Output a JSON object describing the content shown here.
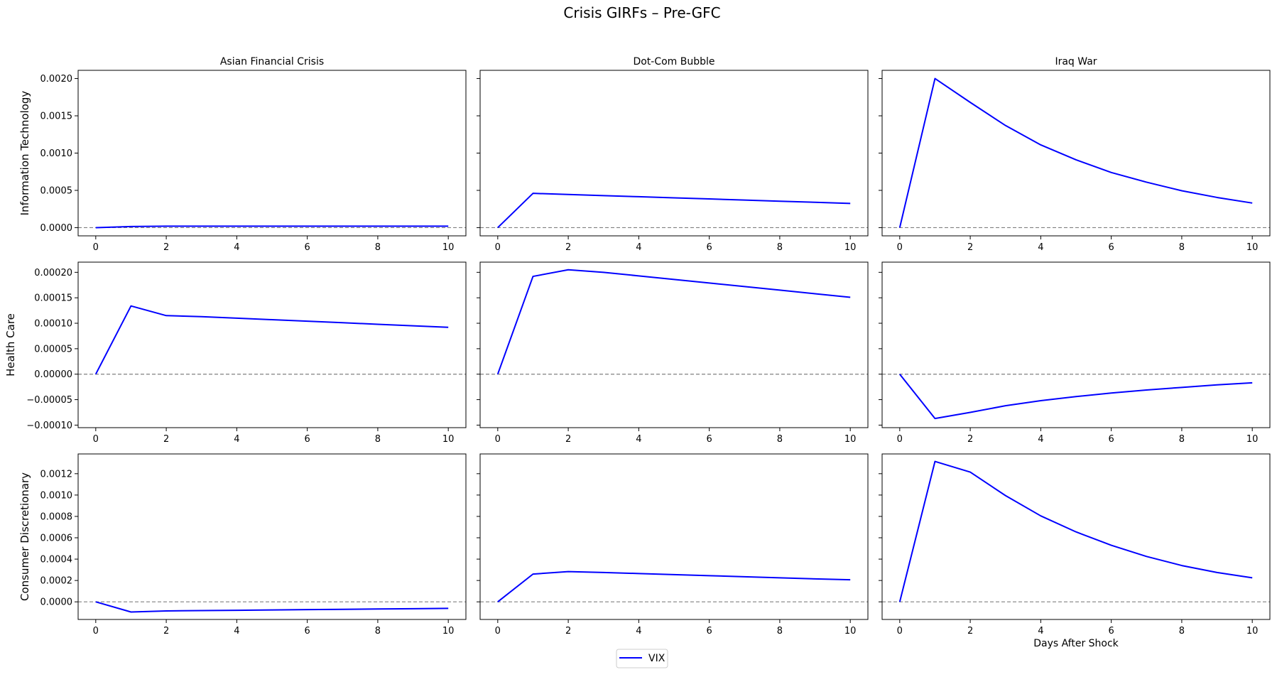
{
  "figure": {
    "title": "Crisis GIRFs – Pre-GFC",
    "legend": {
      "label": "VIX",
      "placement": "bottom-center"
    }
  },
  "colors": {
    "line": "#0000ff",
    "zero_line": "#808080",
    "axes": "#000000"
  },
  "chart_data": [
    {
      "type": "line",
      "row": "Information Technology",
      "column": "Asian Financial Crisis",
      "title": "Asian Financial Crisis",
      "ylabel": "Information Technology",
      "xlabel": "",
      "x": [
        0,
        1,
        2,
        3,
        4,
        5,
        6,
        7,
        8,
        9,
        10
      ],
      "series": [
        {
          "name": "VIX",
          "values": [
            0.0,
            1.5e-05,
            2e-05,
            2e-05,
            2e-05,
            2e-05,
            2e-05,
            2e-05,
            2e-05,
            2e-05,
            2e-05
          ]
        }
      ],
      "xlim": [
        -0.5,
        10.5
      ],
      "xticks": [
        0,
        2,
        4,
        6,
        8,
        10
      ],
      "ylim": [
        -0.00011,
        0.00211
      ],
      "yticks": [
        0.0,
        0.0005,
        0.001,
        0.0015,
        0.002
      ],
      "ytick_labels": [
        "0.0000",
        "0.0005",
        "0.0010",
        "0.0015",
        "0.0020"
      ],
      "show_yticklabels": true,
      "zero_line": true
    },
    {
      "type": "line",
      "row": "Information Technology",
      "column": "Dot-Com Bubble",
      "title": "Dot-Com Bubble",
      "ylabel": "",
      "xlabel": "",
      "x": [
        0,
        1,
        2,
        3,
        4,
        5,
        6,
        7,
        8,
        9,
        10
      ],
      "series": [
        {
          "name": "VIX",
          "values": [
            0.0,
            0.00046,
            0.000445,
            0.00043,
            0.000415,
            0.0004,
            0.000385,
            0.00037,
            0.000355,
            0.00034,
            0.000325
          ]
        }
      ],
      "xlim": [
        -0.5,
        10.5
      ],
      "xticks": [
        0,
        2,
        4,
        6,
        8,
        10
      ],
      "ylim": [
        -0.00011,
        0.00211
      ],
      "yticks": [
        0.0,
        0.0005,
        0.001,
        0.0015,
        0.002
      ],
      "ytick_labels": [],
      "show_yticklabels": false,
      "zero_line": true
    },
    {
      "type": "line",
      "row": "Information Technology",
      "column": "Iraq War",
      "title": "Iraq War",
      "ylabel": "",
      "xlabel": "",
      "x": [
        0,
        1,
        2,
        3,
        4,
        5,
        6,
        7,
        8,
        9,
        10
      ],
      "series": [
        {
          "name": "VIX",
          "values": [
            0.0,
            0.002,
            0.00168,
            0.00137,
            0.00111,
            0.00091,
            0.00074,
            0.00061,
            0.000495,
            0.000405,
            0.00033
          ]
        }
      ],
      "xlim": [
        -0.5,
        10.5
      ],
      "xticks": [
        0,
        2,
        4,
        6,
        8,
        10
      ],
      "ylim": [
        -0.00011,
        0.00211
      ],
      "yticks": [
        0.0,
        0.0005,
        0.001,
        0.0015,
        0.002
      ],
      "ytick_labels": [],
      "show_yticklabels": false,
      "zero_line": true
    },
    {
      "type": "line",
      "row": "Health Care",
      "column": "Asian Financial Crisis",
      "title": "",
      "ylabel": "Health Care",
      "xlabel": "",
      "x": [
        0,
        1,
        2,
        3,
        4,
        5,
        6,
        7,
        8,
        9,
        10
      ],
      "series": [
        {
          "name": "VIX",
          "values": [
            0.0,
            0.000134,
            0.000115,
            0.000113,
            0.00011,
            0.000107,
            0.000104,
            0.000101,
            9.8e-05,
            9.5e-05,
            9.2e-05
          ]
        }
      ],
      "xlim": [
        -0.5,
        10.5
      ],
      "xticks": [
        0,
        2,
        4,
        6,
        8,
        10
      ],
      "ylim": [
        -0.000105,
        0.00022
      ],
      "yticks": [
        -0.0001,
        -5e-05,
        0.0,
        5e-05,
        0.0001,
        0.00015,
        0.0002
      ],
      "ytick_labels": [
        "−0.00010",
        "−0.00005",
        "0.00000",
        "0.00005",
        "0.00010",
        "0.00015",
        "0.00020"
      ],
      "show_yticklabels": true,
      "zero_line": true
    },
    {
      "type": "line",
      "row": "Health Care",
      "column": "Dot-Com Bubble",
      "title": "",
      "ylabel": "",
      "xlabel": "",
      "x": [
        0,
        1,
        2,
        3,
        4,
        5,
        6,
        7,
        8,
        9,
        10
      ],
      "series": [
        {
          "name": "VIX",
          "values": [
            0.0,
            0.000192,
            0.000205,
            0.0002,
            0.000193,
            0.000186,
            0.000179,
            0.000172,
            0.000165,
            0.000158,
            0.000151
          ]
        }
      ],
      "xlim": [
        -0.5,
        10.5
      ],
      "xticks": [
        0,
        2,
        4,
        6,
        8,
        10
      ],
      "ylim": [
        -0.000105,
        0.00022
      ],
      "yticks": [
        -0.0001,
        -5e-05,
        0.0,
        5e-05,
        0.0001,
        0.00015,
        0.0002
      ],
      "ytick_labels": [],
      "show_yticklabels": false,
      "zero_line": true
    },
    {
      "type": "line",
      "row": "Health Care",
      "column": "Iraq War",
      "title": "",
      "ylabel": "",
      "xlabel": "",
      "x": [
        0,
        1,
        2,
        3,
        4,
        5,
        6,
        7,
        8,
        9,
        10
      ],
      "series": [
        {
          "name": "VIX",
          "values": [
            0.0,
            -8.7e-05,
            -7.5e-05,
            -6.2e-05,
            -5.2e-05,
            -4.4e-05,
            -3.7e-05,
            -3.1e-05,
            -2.6e-05,
            -2.1e-05,
            -1.7e-05
          ]
        }
      ],
      "xlim": [
        -0.5,
        10.5
      ],
      "xticks": [
        0,
        2,
        4,
        6,
        8,
        10
      ],
      "ylim": [
        -0.000105,
        0.00022
      ],
      "yticks": [
        -0.0001,
        -5e-05,
        0.0,
        5e-05,
        0.0001,
        0.00015,
        0.0002
      ],
      "ytick_labels": [],
      "show_yticklabels": false,
      "zero_line": true
    },
    {
      "type": "line",
      "row": "Consumer Discretionary",
      "column": "Asian Financial Crisis",
      "title": "",
      "ylabel": "Consumer Discretionary",
      "xlabel": "",
      "x": [
        0,
        1,
        2,
        3,
        4,
        5,
        6,
        7,
        8,
        9,
        10
      ],
      "series": [
        {
          "name": "VIX",
          "values": [
            0.0,
            -9.5e-05,
            -8.5e-05,
            -8.2e-05,
            -7.9e-05,
            -7.6e-05,
            -7.3e-05,
            -7e-05,
            -6.7e-05,
            -6.4e-05,
            -6.1e-05
          ]
        }
      ],
      "xlim": [
        -0.5,
        10.5
      ],
      "xticks": [
        0,
        2,
        4,
        6,
        8,
        10
      ],
      "ylim": [
        -0.000165,
        0.001385
      ],
      "yticks": [
        0.0,
        0.0002,
        0.0004,
        0.0006,
        0.0008,
        0.001,
        0.0012
      ],
      "ytick_labels": [
        "0.0000",
        "0.0002",
        "0.0004",
        "0.0006",
        "0.0008",
        "0.0010",
        "0.0012"
      ],
      "show_yticklabels": true,
      "zero_line": true
    },
    {
      "type": "line",
      "row": "Consumer Discretionary",
      "column": "Dot-Com Bubble",
      "title": "",
      "ylabel": "",
      "xlabel": "",
      "x": [
        0,
        1,
        2,
        3,
        4,
        5,
        6,
        7,
        8,
        9,
        10
      ],
      "series": [
        {
          "name": "VIX",
          "values": [
            0.0,
            0.00026,
            0.000283,
            0.000275,
            0.000265,
            0.000255,
            0.000245,
            0.000235,
            0.000225,
            0.000215,
            0.000207
          ]
        }
      ],
      "xlim": [
        -0.5,
        10.5
      ],
      "xticks": [
        0,
        2,
        4,
        6,
        8,
        10
      ],
      "ylim": [
        -0.000165,
        0.001385
      ],
      "yticks": [
        0.0,
        0.0002,
        0.0004,
        0.0006,
        0.0008,
        0.001,
        0.0012
      ],
      "ytick_labels": [],
      "show_yticklabels": false,
      "zero_line": true
    },
    {
      "type": "line",
      "row": "Consumer Discretionary",
      "column": "Iraq War",
      "title": "",
      "ylabel": "",
      "xlabel": "Days After Shock",
      "x": [
        0,
        1,
        2,
        3,
        4,
        5,
        6,
        7,
        8,
        9,
        10
      ],
      "series": [
        {
          "name": "VIX",
          "values": [
            0.0,
            0.001315,
            0.001215,
            0.000995,
            0.000805,
            0.000655,
            0.00053,
            0.000425,
            0.00034,
            0.000275,
            0.000225
          ]
        }
      ],
      "xlim": [
        -0.5,
        10.5
      ],
      "xticks": [
        0,
        2,
        4,
        6,
        8,
        10
      ],
      "ylim": [
        -0.000165,
        0.001385
      ],
      "yticks": [
        0.0,
        0.0002,
        0.0004,
        0.0006,
        0.0008,
        0.001,
        0.0012
      ],
      "ytick_labels": [],
      "show_yticklabels": false,
      "zero_line": true
    }
  ]
}
